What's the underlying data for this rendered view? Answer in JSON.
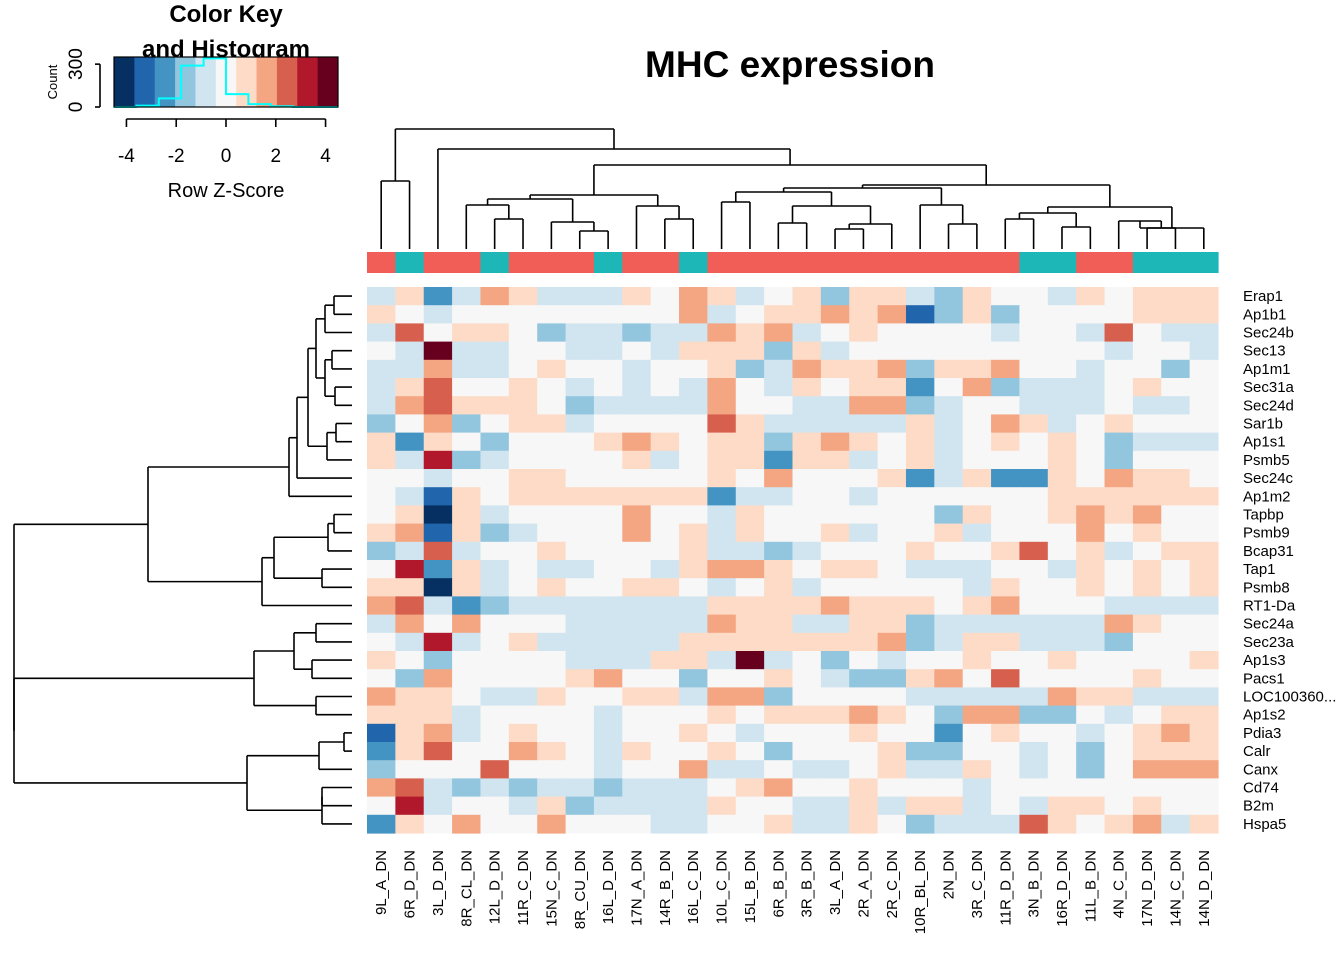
{
  "chart_data": {
    "type": "heatmap",
    "title": "MHC expression",
    "color_key": {
      "title_line1": "Color Key",
      "title_line2": "and Histogram",
      "xlabel": "Row Z-Score",
      "ylabel": "Count",
      "x_ticks": [
        "-4",
        "-2",
        "0",
        "2",
        "4"
      ],
      "y_ticks": [
        "0",
        "300"
      ],
      "colors": [
        "#053061",
        "#2166ac",
        "#4393c3",
        "#92c5de",
        "#d1e5f0",
        "#f7f7f7",
        "#fddbc7",
        "#f4a582",
        "#d6604d",
        "#b2182b",
        "#67001f"
      ],
      "histogram": [
        0,
        10,
        60,
        290,
        340,
        90,
        20,
        5,
        0,
        0
      ],
      "histogram_color": "#00ffff"
    },
    "columns": [
      "9L_A_DN",
      "6R_D_DN",
      "3L_D_DN",
      "8R_CL_DN",
      "12L_D_DN",
      "11R_C_DN",
      "15N_C_DN",
      "8R_CU_DN",
      "16L_D_DN",
      "17N_A_DN",
      "14R_B_DN",
      "16L_C_DN",
      "10L_C_DN",
      "15L_B_DN",
      "6R_B_DN",
      "3R_B_DN",
      "3L_A_DN",
      "2R_A_DN",
      "2R_C_DN",
      "10R_BL_DN",
      "2N_DN",
      "3R_C_DN",
      "11R_D_DN",
      "3N_B_DN",
      "16R_D_DN",
      "11L_B_DN",
      "4N_C_DN",
      "17N_D_DN",
      "14N_C_DN",
      "14N_D_DN"
    ],
    "column_groups": [
      "A",
      "B",
      "A",
      "A",
      "B",
      "A",
      "A",
      "A",
      "B",
      "A",
      "A",
      "B",
      "A",
      "A",
      "A",
      "A",
      "A",
      "A",
      "A",
      "A",
      "A",
      "A",
      "A",
      "B",
      "B",
      "A",
      "A",
      "B",
      "B",
      "B"
    ],
    "group_colors": {
      "A": "#f15d57",
      "B": "#1eb7b7"
    },
    "rows": [
      "Erap1",
      "Ap1b1",
      "Sec24b",
      "Sec13",
      "Ap1m1",
      "Sec31a",
      "Sec24d",
      "Sar1b",
      "Ap1s1",
      "Psmb5",
      "Sec24c",
      "Ap1m2",
      "Tapbp",
      "Psmb9",
      "Bcap31",
      "Tap1",
      "Psmb8",
      "RT1-Da",
      "Sec24a",
      "Sec23a",
      "Ap1s3",
      "Pacs1",
      "LOC100360...",
      "Ap1s2",
      "Pdia3",
      "Calr",
      "Canx",
      "Cd74",
      "B2m",
      "Hspa5"
    ],
    "values": [
      [
        -1,
        1,
        -3,
        -1,
        2,
        1,
        -1,
        -1,
        -1,
        1,
        0,
        2,
        1,
        -1,
        0,
        1,
        -2,
        1,
        1,
        -1,
        -2,
        1,
        0,
        0,
        -1,
        1,
        0,
        1,
        1,
        1
      ],
      [
        1,
        0,
        -1,
        0,
        0,
        0,
        0,
        0,
        0,
        0,
        0,
        2,
        -1,
        0,
        1,
        1,
        2,
        1,
        2,
        -4,
        -2,
        1,
        -2,
        0,
        0,
        0,
        0,
        1,
        1,
        1
      ],
      [
        -1,
        3,
        0,
        1,
        1,
        0,
        -2,
        -1,
        -1,
        -2,
        -1,
        -1,
        2,
        1,
        2,
        -1,
        0,
        1,
        0,
        0,
        0,
        0,
        -1,
        0,
        0,
        -1,
        3,
        0,
        -1,
        -1
      ],
      [
        0,
        -1,
        5,
        -1,
        -1,
        0,
        0,
        -1,
        -1,
        0,
        -1,
        1,
        1,
        1,
        -2,
        1,
        -1,
        0,
        0,
        0,
        0,
        0,
        0,
        0,
        0,
        0,
        -1,
        0,
        0,
        -1
      ],
      [
        -1,
        -1,
        2,
        -1,
        -1,
        0,
        1,
        0,
        0,
        -1,
        0,
        0,
        1,
        -2,
        -1,
        2,
        1,
        1,
        2,
        -2,
        1,
        1,
        2,
        0,
        0,
        -1,
        0,
        0,
        -2,
        0
      ],
      [
        -1,
        1,
        3,
        0,
        0,
        1,
        0,
        -1,
        0,
        -1,
        0,
        -1,
        2,
        0,
        -1,
        1,
        0,
        1,
        1,
        -3,
        0,
        2,
        -2,
        -1,
        -1,
        -1,
        0,
        1,
        0,
        0
      ],
      [
        -1,
        2,
        3,
        1,
        1,
        1,
        0,
        -2,
        -1,
        -1,
        -1,
        -1,
        2,
        0,
        0,
        -1,
        -1,
        2,
        2,
        -2,
        -1,
        0,
        0,
        -1,
        -1,
        -1,
        0,
        -1,
        -1,
        0
      ],
      [
        -2,
        0,
        2,
        -2,
        0,
        1,
        1,
        -1,
        0,
        0,
        0,
        0,
        3,
        1,
        -1,
        -1,
        -1,
        -1,
        -1,
        1,
        -1,
        0,
        2,
        1,
        -1,
        0,
        1,
        0,
        0,
        0
      ],
      [
        1,
        -3,
        1,
        0,
        -2,
        0,
        0,
        0,
        1,
        2,
        1,
        0,
        1,
        1,
        -2,
        1,
        2,
        1,
        0,
        1,
        -1,
        0,
        1,
        0,
        1,
        0,
        -2,
        -1,
        -1,
        -1
      ],
      [
        1,
        -1,
        4,
        -2,
        -1,
        0,
        0,
        0,
        0,
        1,
        -1,
        0,
        1,
        1,
        -3,
        1,
        1,
        -1,
        0,
        1,
        -1,
        0,
        0,
        0,
        1,
        0,
        -2,
        0,
        0,
        0
      ],
      [
        0,
        0,
        -1,
        0,
        0,
        1,
        1,
        0,
        0,
        0,
        0,
        0,
        1,
        0,
        2,
        0,
        0,
        0,
        1,
        -3,
        -1,
        1,
        -3,
        -3,
        1,
        0,
        2,
        1,
        1,
        0
      ],
      [
        0,
        -1,
        -4,
        1,
        0,
        1,
        1,
        1,
        1,
        1,
        1,
        1,
        -3,
        -1,
        -1,
        0,
        0,
        -1,
        0,
        0,
        0,
        0,
        0,
        0,
        1,
        1,
        1,
        1,
        1,
        1
      ],
      [
        0,
        1,
        -5,
        1,
        -1,
        0,
        0,
        0,
        0,
        2,
        0,
        0,
        -1,
        1,
        0,
        0,
        0,
        0,
        0,
        0,
        -2,
        1,
        0,
        0,
        1,
        2,
        1,
        2,
        0,
        0
      ],
      [
        1,
        2,
        -4,
        1,
        -2,
        -1,
        0,
        0,
        0,
        2,
        0,
        1,
        -1,
        1,
        0,
        0,
        1,
        -1,
        0,
        0,
        1,
        -1,
        0,
        0,
        0,
        2,
        0,
        1,
        0,
        0
      ],
      [
        -2,
        -1,
        3,
        -1,
        0,
        0,
        1,
        0,
        0,
        0,
        0,
        1,
        -1,
        -1,
        -2,
        -1,
        0,
        0,
        0,
        1,
        0,
        0,
        1,
        3,
        0,
        1,
        -1,
        0,
        1,
        1
      ],
      [
        0,
        4,
        -3,
        1,
        -1,
        0,
        -1,
        -1,
        0,
        0,
        -1,
        1,
        2,
        2,
        1,
        0,
        1,
        1,
        0,
        -1,
        -1,
        -1,
        0,
        0,
        -1,
        1,
        0,
        1,
        0,
        1
      ],
      [
        1,
        1,
        -5,
        1,
        -1,
        0,
        1,
        0,
        0,
        1,
        1,
        0,
        -1,
        0,
        1,
        -1,
        0,
        0,
        0,
        0,
        0,
        -1,
        1,
        0,
        0,
        1,
        0,
        1,
        0,
        1
      ],
      [
        2,
        3,
        -1,
        -3,
        -2,
        -1,
        -1,
        -1,
        -1,
        -1,
        -1,
        -1,
        1,
        1,
        1,
        1,
        2,
        1,
        1,
        1,
        0,
        1,
        2,
        0,
        0,
        0,
        -1,
        -1,
        -1,
        -1
      ],
      [
        -1,
        2,
        0,
        2,
        0,
        0,
        0,
        -1,
        -1,
        -1,
        -1,
        -1,
        2,
        1,
        1,
        -1,
        -1,
        1,
        1,
        -2,
        -1,
        -1,
        -1,
        -1,
        -1,
        -1,
        2,
        1,
        0,
        0
      ],
      [
        0,
        -1,
        4,
        -1,
        0,
        1,
        -1,
        -1,
        -1,
        -1,
        -1,
        1,
        1,
        1,
        1,
        1,
        1,
        1,
        2,
        -2,
        -1,
        1,
        1,
        -1,
        -1,
        -1,
        -2,
        0,
        0,
        0
      ],
      [
        1,
        0,
        -2,
        0,
        0,
        0,
        0,
        -1,
        -1,
        -1,
        1,
        1,
        -1,
        5,
        -1,
        0,
        -2,
        0,
        -1,
        0,
        0,
        1,
        0,
        0,
        1,
        0,
        0,
        0,
        0,
        1
      ],
      [
        0,
        -2,
        2,
        0,
        0,
        0,
        0,
        1,
        2,
        0,
        0,
        -2,
        0,
        0,
        1,
        0,
        -1,
        -2,
        -2,
        1,
        2,
        0,
        3,
        0,
        0,
        0,
        0,
        1,
        0,
        0
      ],
      [
        2,
        1,
        1,
        0,
        -1,
        -1,
        1,
        0,
        0,
        1,
        1,
        -1,
        2,
        2,
        -2,
        0,
        0,
        0,
        0,
        -1,
        -1,
        -1,
        -1,
        -1,
        2,
        1,
        1,
        -1,
        -1,
        -1
      ],
      [
        1,
        1,
        1,
        -1,
        0,
        0,
        0,
        0,
        -1,
        0,
        0,
        0,
        1,
        0,
        1,
        1,
        1,
        2,
        1,
        0,
        -2,
        2,
        2,
        -2,
        -2,
        0,
        -1,
        0,
        1,
        1
      ],
      [
        -4,
        1,
        2,
        -1,
        0,
        1,
        0,
        0,
        -1,
        0,
        0,
        1,
        0,
        -1,
        0,
        0,
        0,
        1,
        0,
        0,
        -3,
        0,
        1,
        0,
        0,
        -1,
        0,
        1,
        2,
        1
      ],
      [
        -3,
        1,
        3,
        0,
        0,
        2,
        1,
        0,
        -1,
        1,
        0,
        0,
        1,
        0,
        -2,
        0,
        0,
        0,
        1,
        -2,
        -2,
        0,
        0,
        -1,
        0,
        -2,
        0,
        1,
        1,
        1
      ],
      [
        -2,
        0,
        0,
        0,
        3,
        0,
        0,
        0,
        -1,
        0,
        0,
        2,
        -1,
        -1,
        0,
        -1,
        -1,
        0,
        1,
        -1,
        -1,
        1,
        0,
        -1,
        0,
        -2,
        0,
        2,
        2,
        2
      ],
      [
        2,
        3,
        -1,
        -2,
        -1,
        -2,
        -1,
        -1,
        -2,
        -1,
        -1,
        -1,
        0,
        1,
        2,
        0,
        0,
        1,
        0,
        0,
        0,
        -1,
        0,
        0,
        0,
        0,
        0,
        0,
        0,
        0
      ],
      [
        0,
        4,
        -1,
        0,
        0,
        -1,
        1,
        -2,
        -1,
        -1,
        -1,
        -1,
        1,
        0,
        0,
        -1,
        -1,
        1,
        -1,
        1,
        1,
        -1,
        0,
        -1,
        1,
        1,
        0,
        1,
        0,
        0
      ],
      [
        -3,
        1,
        0,
        2,
        0,
        0,
        2,
        0,
        0,
        0,
        -1,
        -1,
        0,
        0,
        1,
        -1,
        -1,
        1,
        0,
        -2,
        -1,
        -1,
        -1,
        3,
        1,
        0,
        1,
        2,
        -1,
        1
      ]
    ]
  }
}
